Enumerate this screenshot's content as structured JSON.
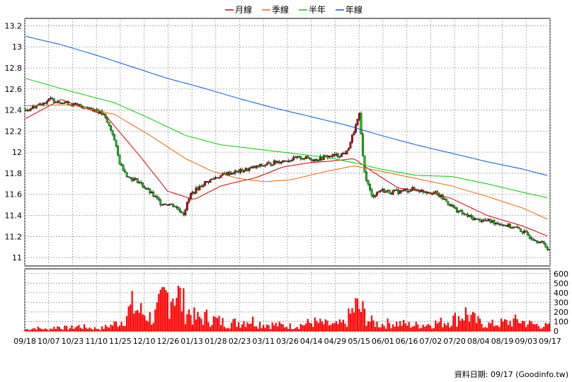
{
  "legend": [
    {
      "label": "月線",
      "color": "#cc0000"
    },
    {
      "label": "季線",
      "color": "#e06a00"
    },
    {
      "label": "半年",
      "color": "#00cc00"
    },
    {
      "label": "年線",
      "color": "#0055dd"
    }
  ],
  "footer": "資料日期: 09/17 (Goodinfo.tw)",
  "colors": {
    "up": "#cc0000",
    "down": "#00cc00",
    "volume": "#ff0000",
    "grid": "#999999"
  },
  "chart_data": {
    "type": "candlestick+volume",
    "price_axis": {
      "ticks": [
        "13.2",
        "13",
        "12.8",
        "12.6",
        "12.4",
        "12.2",
        "12",
        "11.8",
        "11.6",
        "11.4",
        "11.2",
        "11"
      ],
      "range": [
        10.92,
        13.27
      ]
    },
    "volume_axis": {
      "ticks": [
        "600",
        "500",
        "400",
        "300",
        "200",
        "100",
        "0"
      ],
      "range": [
        0,
        650
      ]
    },
    "x_tick_labels": [
      "09/18",
      "10/07",
      "10/23",
      "11/10",
      "11/25",
      "12/10",
      "12/26",
      "01/13",
      "01/28",
      "02/23",
      "03/11",
      "03/26",
      "04/14",
      "04/29",
      "05/15",
      "06/01",
      "06/16",
      "07/02",
      "07/20",
      "08/04",
      "08/19",
      "09/03",
      "09/17"
    ],
    "price_keyframes": [
      [
        0,
        12.4
      ],
      [
        7,
        12.45
      ],
      [
        14,
        12.5
      ],
      [
        20,
        12.48
      ],
      [
        27,
        12.45
      ],
      [
        34,
        12.43
      ],
      [
        40,
        12.4
      ],
      [
        44,
        12.35
      ],
      [
        49,
        12.18
      ],
      [
        53,
        11.9
      ],
      [
        58,
        11.76
      ],
      [
        63,
        11.73
      ],
      [
        70,
        11.62
      ],
      [
        76,
        11.52
      ],
      [
        83,
        11.5
      ],
      [
        89,
        11.42
      ],
      [
        93,
        11.6
      ],
      [
        100,
        11.7
      ],
      [
        107,
        11.76
      ],
      [
        114,
        11.8
      ],
      [
        121,
        11.82
      ],
      [
        128,
        11.85
      ],
      [
        135,
        11.88
      ],
      [
        142,
        11.91
      ],
      [
        149,
        11.93
      ],
      [
        156,
        11.95
      ],
      [
        163,
        11.93
      ],
      [
        170,
        11.96
      ],
      [
        176,
        11.97
      ],
      [
        181,
        12.0
      ],
      [
        185,
        12.2
      ],
      [
        188,
        12.35
      ],
      [
        191,
        11.8
      ],
      [
        195,
        11.58
      ],
      [
        200,
        11.64
      ],
      [
        206,
        11.62
      ],
      [
        212,
        11.63
      ],
      [
        218,
        11.65
      ],
      [
        224,
        11.63
      ],
      [
        230,
        11.62
      ],
      [
        236,
        11.55
      ],
      [
        242,
        11.46
      ],
      [
        248,
        11.4
      ],
      [
        254,
        11.36
      ],
      [
        260,
        11.35
      ],
      [
        266,
        11.33
      ],
      [
        272,
        11.3
      ],
      [
        278,
        11.27
      ],
      [
        284,
        11.2
      ],
      [
        290,
        11.15
      ],
      [
        295,
        11.08
      ]
    ],
    "volume_keyframes": [
      [
        0,
        20
      ],
      [
        6,
        40
      ],
      [
        12,
        20
      ],
      [
        18,
        55
      ],
      [
        24,
        35
      ],
      [
        30,
        60
      ],
      [
        36,
        40
      ],
      [
        42,
        30
      ],
      [
        48,
        70
      ],
      [
        54,
        120
      ],
      [
        60,
        300
      ],
      [
        66,
        220
      ],
      [
        72,
        150
      ],
      [
        78,
        400
      ],
      [
        84,
        520
      ],
      [
        90,
        280
      ],
      [
        96,
        150
      ],
      [
        102,
        170
      ],
      [
        108,
        130
      ],
      [
        114,
        90
      ],
      [
        120,
        110
      ],
      [
        126,
        140
      ],
      [
        132,
        95
      ],
      [
        138,
        80
      ],
      [
        144,
        70
      ],
      [
        150,
        60
      ],
      [
        156,
        80
      ],
      [
        162,
        110
      ],
      [
        168,
        90
      ],
      [
        174,
        70
      ],
      [
        180,
        100
      ],
      [
        186,
        300
      ],
      [
        190,
        240
      ],
      [
        194,
        120
      ],
      [
        200,
        80
      ],
      [
        206,
        100
      ],
      [
        212,
        90
      ],
      [
        218,
        70
      ],
      [
        224,
        80
      ],
      [
        230,
        95
      ],
      [
        236,
        110
      ],
      [
        242,
        150
      ],
      [
        248,
        220
      ],
      [
        254,
        120
      ],
      [
        260,
        80
      ],
      [
        266,
        90
      ],
      [
        272,
        110
      ],
      [
        278,
        130
      ],
      [
        284,
        90
      ],
      [
        290,
        70
      ],
      [
        295,
        60
      ]
    ],
    "ma_series": [
      {
        "name": "月線",
        "points": [
          [
            0,
            12.32
          ],
          [
            20,
            12.5
          ],
          [
            45,
            12.35
          ],
          [
            65,
            11.95
          ],
          [
            80,
            11.63
          ],
          [
            95,
            11.55
          ],
          [
            110,
            11.68
          ],
          [
            130,
            11.76
          ],
          [
            145,
            11.86
          ],
          [
            160,
            11.9
          ],
          [
            175,
            11.92
          ],
          [
            185,
            11.94
          ],
          [
            195,
            11.82
          ],
          [
            210,
            11.66
          ],
          [
            225,
            11.63
          ],
          [
            240,
            11.56
          ],
          [
            260,
            11.4
          ],
          [
            280,
            11.3
          ],
          [
            296,
            11.19
          ]
        ]
      },
      {
        "name": "季線",
        "points": [
          [
            0,
            12.44
          ],
          [
            25,
            12.45
          ],
          [
            50,
            12.36
          ],
          [
            70,
            12.16
          ],
          [
            90,
            11.94
          ],
          [
            105,
            11.82
          ],
          [
            120,
            11.75
          ],
          [
            135,
            11.72
          ],
          [
            150,
            11.74
          ],
          [
            170,
            11.82
          ],
          [
            185,
            11.87
          ],
          [
            200,
            11.82
          ],
          [
            220,
            11.75
          ],
          [
            240,
            11.68
          ],
          [
            260,
            11.58
          ],
          [
            280,
            11.47
          ],
          [
            296,
            11.35
          ]
        ]
      },
      {
        "name": "半年",
        "points": [
          [
            0,
            12.7
          ],
          [
            25,
            12.58
          ],
          [
            50,
            12.47
          ],
          [
            70,
            12.32
          ],
          [
            90,
            12.16
          ],
          [
            110,
            12.07
          ],
          [
            130,
            12.03
          ],
          [
            150,
            11.99
          ],
          [
            170,
            11.95
          ],
          [
            185,
            11.9
          ],
          [
            200,
            11.84
          ],
          [
            220,
            11.78
          ],
          [
            240,
            11.77
          ],
          [
            260,
            11.7
          ],
          [
            280,
            11.62
          ],
          [
            296,
            11.56
          ]
        ]
      },
      {
        "name": "年線",
        "points": [
          [
            0,
            13.1
          ],
          [
            20,
            13.02
          ],
          [
            40,
            12.92
          ],
          [
            60,
            12.81
          ],
          [
            80,
            12.7
          ],
          [
            100,
            12.61
          ],
          [
            120,
            12.51
          ],
          [
            140,
            12.42
          ],
          [
            160,
            12.34
          ],
          [
            180,
            12.26
          ],
          [
            200,
            12.16
          ],
          [
            220,
            12.07
          ],
          [
            240,
            11.99
          ],
          [
            260,
            11.91
          ],
          [
            280,
            11.84
          ],
          [
            296,
            11.77
          ]
        ]
      }
    ]
  }
}
